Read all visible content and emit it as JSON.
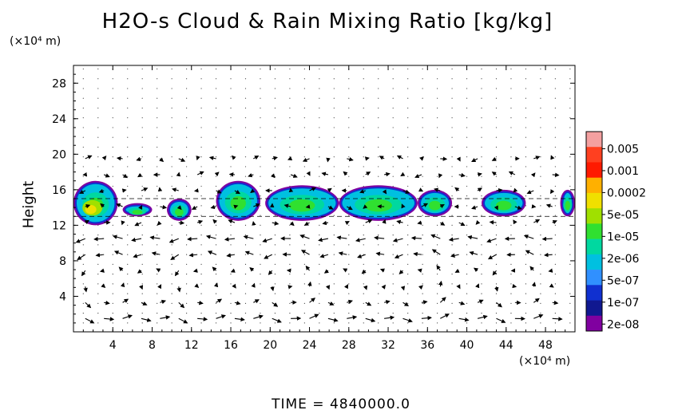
{
  "chart_data": {
    "type": "heatmap",
    "title": "H2O-s Cloud & Rain Mixing Ratio [kg/kg]",
    "ylabel": "Height",
    "y_unit": "(×10⁴ m)",
    "x_unit": "(×10⁴ m)",
    "xlim": [
      0,
      51
    ],
    "ylim": [
      0,
      30
    ],
    "xticks": [
      4,
      8,
      12,
      16,
      20,
      24,
      28,
      32,
      36,
      40,
      44,
      48
    ],
    "yticks": [
      4,
      8,
      12,
      16,
      20,
      24,
      28
    ],
    "colorbar_labels": [
      "0.005",
      "0.001",
      "0.0002",
      "5e-05",
      "1e-05",
      "2e-06",
      "5e-07",
      "1e-07",
      "2e-08"
    ],
    "colorbar_colors": [
      "#f4a0a0",
      "#ff4020",
      "#ff1a00",
      "#ffb000",
      "#f0e000",
      "#a0e000",
      "#30e030",
      "#00d8a0",
      "#00c0e0",
      "#3090ff",
      "#1030d0",
      "#101890",
      "#8000a0"
    ],
    "vectors": "wind field arrows",
    "clouds": [
      {
        "x": [
          0,
          4.5
        ],
        "y": [
          12,
          17
        ],
        "level": "high"
      },
      {
        "x": [
          5,
          8
        ],
        "y": [
          13,
          14.5
        ],
        "level": "low"
      },
      {
        "x": [
          9.5,
          12
        ],
        "y": [
          12.5,
          15
        ],
        "level": "mid"
      },
      {
        "x": [
          14.5,
          19
        ],
        "y": [
          12.5,
          17
        ],
        "level": "mid"
      },
      {
        "x": [
          19.5,
          27
        ],
        "y": [
          12.5,
          16.5
        ],
        "level": "mid"
      },
      {
        "x": [
          27,
          35
        ],
        "y": [
          12.5,
          16.5
        ],
        "level": "mid"
      },
      {
        "x": [
          35,
          38.5
        ],
        "y": [
          13,
          16
        ],
        "level": "mid"
      },
      {
        "x": [
          41.5,
          46
        ],
        "y": [
          13,
          16
        ],
        "level": "mid"
      },
      {
        "x": [
          49.5,
          51
        ],
        "y": [
          13,
          16
        ],
        "level": "mid"
      }
    ]
  },
  "footer": {
    "time_label": "TIME = 4840000.0"
  }
}
